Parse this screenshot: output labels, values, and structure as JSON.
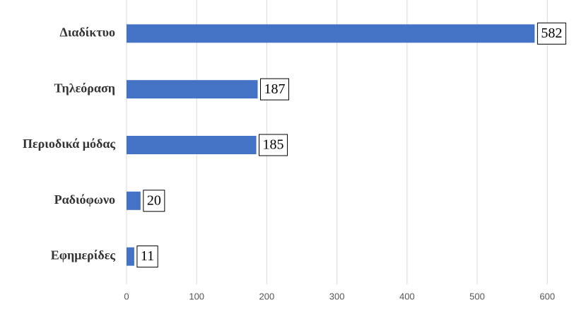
{
  "chart_data": {
    "type": "bar",
    "orientation": "horizontal",
    "categories": [
      "Διαδίκτυο",
      "Τηλεόραση",
      "Περιοδικά μόδας",
      "Ραδιόφωνο",
      "Εφημερίδες"
    ],
    "values": [
      582,
      187,
      185,
      20,
      11
    ],
    "color": "#4472c4",
    "xlim": [
      0,
      630
    ],
    "xticks": [
      0,
      100,
      200,
      300,
      400,
      500,
      600
    ],
    "grid": true
  }
}
